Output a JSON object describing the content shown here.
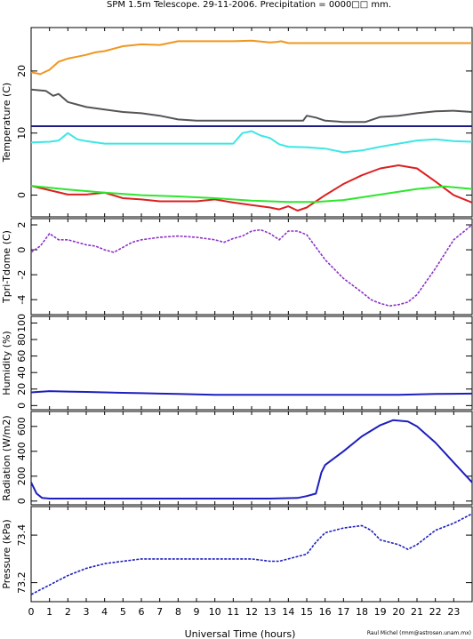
{
  "title": "SPM 1.5m Telescope. 29-11-2006. Precipitation = 0000□□ mm.",
  "xlabel": "Universal Time (hours)",
  "credit": "Raul Michel (rmm@astrosen.unam.mx)",
  "chart_data": [
    {
      "type": "line",
      "panel": "temperature",
      "ylabel": "Temperature (C)",
      "xlim": [
        0,
        24
      ],
      "ylim": [
        -3.5,
        27
      ],
      "yticks": [
        0,
        10,
        20
      ],
      "series": [
        {
          "color": "#f0961e",
          "x": [
            0,
            0.5,
            1,
            1.5,
            2,
            2.5,
            3,
            3.5,
            4,
            5,
            6,
            7,
            8,
            9,
            10,
            11,
            12,
            13,
            13.4,
            13.6,
            14,
            16,
            18,
            20,
            22,
            24
          ],
          "y": [
            19.8,
            19.5,
            20.2,
            21.5,
            22,
            22.3,
            22.6,
            23,
            23.2,
            24,
            24.3,
            24.2,
            24.8,
            24.8,
            24.8,
            24.8,
            24.9,
            24.6,
            24.7,
            24.8,
            24.5,
            24.5,
            24.5,
            24.5,
            24.5,
            24.5
          ]
        },
        {
          "color": "#555555",
          "x": [
            0,
            0.8,
            1.2,
            1.5,
            2,
            3,
            4,
            5,
            6,
            7,
            8,
            9,
            10,
            11,
            12,
            13,
            14,
            14.8,
            15,
            15.5,
            16,
            17,
            18.2,
            19,
            20,
            21,
            22,
            23,
            24
          ],
          "y": [
            17,
            16.8,
            16,
            16.3,
            15,
            14.2,
            13.8,
            13.4,
            13.2,
            12.8,
            12.2,
            12,
            12,
            12,
            12,
            12,
            12,
            12,
            12.8,
            12.5,
            12,
            11.8,
            11.8,
            12.6,
            12.8,
            13.2,
            13.5,
            13.6,
            13.4
          ]
        },
        {
          "color": "#1e1e82",
          "x": [
            0,
            24
          ],
          "y": [
            11.1,
            11.1
          ]
        },
        {
          "color": "#3ce6e6",
          "x": [
            0,
            1,
            1.5,
            2,
            2.5,
            3,
            4,
            5,
            6,
            7,
            8,
            9,
            10,
            11,
            11.5,
            12,
            12.5,
            13,
            13.5,
            14,
            15,
            16,
            17,
            18,
            19,
            20,
            21,
            22,
            23,
            24
          ],
          "y": [
            8.5,
            8.6,
            8.8,
            10,
            9,
            8.7,
            8.3,
            8.3,
            8.3,
            8.3,
            8.3,
            8.3,
            8.3,
            8.3,
            10,
            10.3,
            9.6,
            9.2,
            8.2,
            7.8,
            7.7,
            7.5,
            6.9,
            7.2,
            7.8,
            8.3,
            8.8,
            9,
            8.7,
            8.6
          ]
        },
        {
          "color": "#dc2020",
          "x": [
            0,
            1,
            2,
            3,
            4,
            5,
            6,
            7,
            8,
            9,
            10,
            11,
            12,
            13,
            13.5,
            14,
            14.5,
            15,
            16,
            17,
            18,
            19,
            20,
            21,
            22,
            23,
            24
          ],
          "y": [
            1.5,
            0.8,
            0.1,
            0.1,
            0.4,
            -0.5,
            -0.7,
            -1,
            -1,
            -1,
            -0.7,
            -1.2,
            -1.6,
            -2,
            -2.3,
            -1.8,
            -2.5,
            -2,
            0,
            1.8,
            3.2,
            4.3,
            4.8,
            4.3,
            2.2,
            0,
            -1.2
          ]
        },
        {
          "color": "#2ee62e",
          "x": [
            0,
            2,
            4,
            6,
            8,
            10,
            12,
            14,
            15.5,
            17,
            19,
            21,
            22.5,
            24
          ],
          "y": [
            1.5,
            0.9,
            0.4,
            0,
            -0.2,
            -0.5,
            -0.9,
            -1.1,
            -1.1,
            -0.8,
            0.1,
            1,
            1.4,
            1
          ]
        }
      ]
    },
    {
      "type": "scatter",
      "panel": "tpri-tdome",
      "ylabel": "Tpri-Tdome (C)",
      "xlim": [
        0,
        24
      ],
      "ylim": [
        -5.2,
        2.5
      ],
      "yticks": [
        -4,
        -2,
        0,
        2
      ],
      "series": [
        {
          "color": "#8c32c8",
          "x": [
            0,
            0.5,
            1,
            1.5,
            2,
            2.5,
            3,
            3.5,
            4,
            4.5,
            5,
            5.5,
            6,
            7,
            8,
            9,
            10,
            10.5,
            11,
            11.5,
            12,
            12.5,
            13,
            13.5,
            14,
            14.5,
            15,
            16,
            17,
            18,
            18.5,
            19,
            19.5,
            20,
            20.5,
            21,
            22,
            23,
            24
          ],
          "y": [
            -0.2,
            0.3,
            1.3,
            0.8,
            0.8,
            0.6,
            0.4,
            0.3,
            0,
            -0.2,
            0.2,
            0.6,
            0.8,
            1,
            1.1,
            1,
            0.8,
            0.6,
            0.9,
            1.1,
            1.5,
            1.6,
            1.3,
            0.8,
            1.5,
            1.5,
            1.2,
            -0.8,
            -2.3,
            -3.4,
            -4,
            -4.3,
            -4.5,
            -4.4,
            -4.2,
            -3.6,
            -1.5,
            0.8,
            2
          ]
        }
      ]
    },
    {
      "type": "line",
      "panel": "humidity",
      "ylabel": "Humidity (%)",
      "xlim": [
        0,
        24
      ],
      "ylim": [
        -5,
        108
      ],
      "yticks": [
        0,
        20,
        40,
        60,
        80,
        100
      ],
      "series": [
        {
          "color": "#1e1ebe",
          "x": [
            0,
            1,
            2,
            3,
            4,
            5,
            6,
            7,
            8,
            9,
            10,
            12,
            14,
            16,
            18,
            20,
            22,
            24
          ],
          "y": [
            16,
            17.5,
            17,
            16.5,
            16,
            15.5,
            15,
            14.5,
            14,
            13.5,
            13,
            13,
            13,
            13,
            13,
            13,
            14,
            14.5
          ]
        }
      ]
    },
    {
      "type": "line",
      "panel": "radiation",
      "ylabel": "Radiation (W/m2)",
      "xlim": [
        0,
        24
      ],
      "ylim": [
        -30,
        720
      ],
      "yticks": [
        0,
        200,
        400,
        600
      ],
      "series": [
        {
          "color": "#1e1ebe",
          "x": [
            0,
            0.3,
            0.6,
            1,
            3,
            6,
            10,
            13,
            14.5,
            15,
            15.5,
            15.8,
            16,
            17,
            18,
            19,
            19.7,
            20.5,
            21,
            22,
            23,
            24
          ],
          "y": [
            150,
            60,
            25,
            20,
            20,
            20,
            20,
            20,
            25,
            40,
            60,
            230,
            290,
            400,
            520,
            610,
            650,
            640,
            600,
            470,
            310,
            150
          ]
        }
      ]
    },
    {
      "type": "scatter",
      "panel": "pressure",
      "ylabel": "Pressure (kPa)",
      "xlim": [
        0,
        24
      ],
      "ylim": [
        73.12,
        73.52
      ],
      "yticks": [
        73.2,
        73.4
      ],
      "series": [
        {
          "color": "#1e1ebe",
          "x": [
            0,
            0.5,
            1,
            1.5,
            2,
            3,
            4,
            5,
            6,
            7,
            8,
            9,
            10,
            11,
            12,
            13,
            13.5,
            14,
            15,
            15.5,
            16,
            17,
            18,
            18.5,
            19,
            20,
            20.5,
            21,
            22,
            23,
            23.5,
            24
          ],
          "y": [
            73.15,
            73.17,
            73.19,
            73.21,
            73.23,
            73.26,
            73.28,
            73.29,
            73.3,
            73.3,
            73.3,
            73.3,
            73.3,
            73.3,
            73.3,
            73.29,
            73.29,
            73.3,
            73.32,
            73.37,
            73.41,
            73.43,
            73.44,
            73.42,
            73.38,
            73.36,
            73.34,
            73.36,
            73.42,
            73.45,
            73.47,
            73.49
          ]
        }
      ]
    }
  ]
}
